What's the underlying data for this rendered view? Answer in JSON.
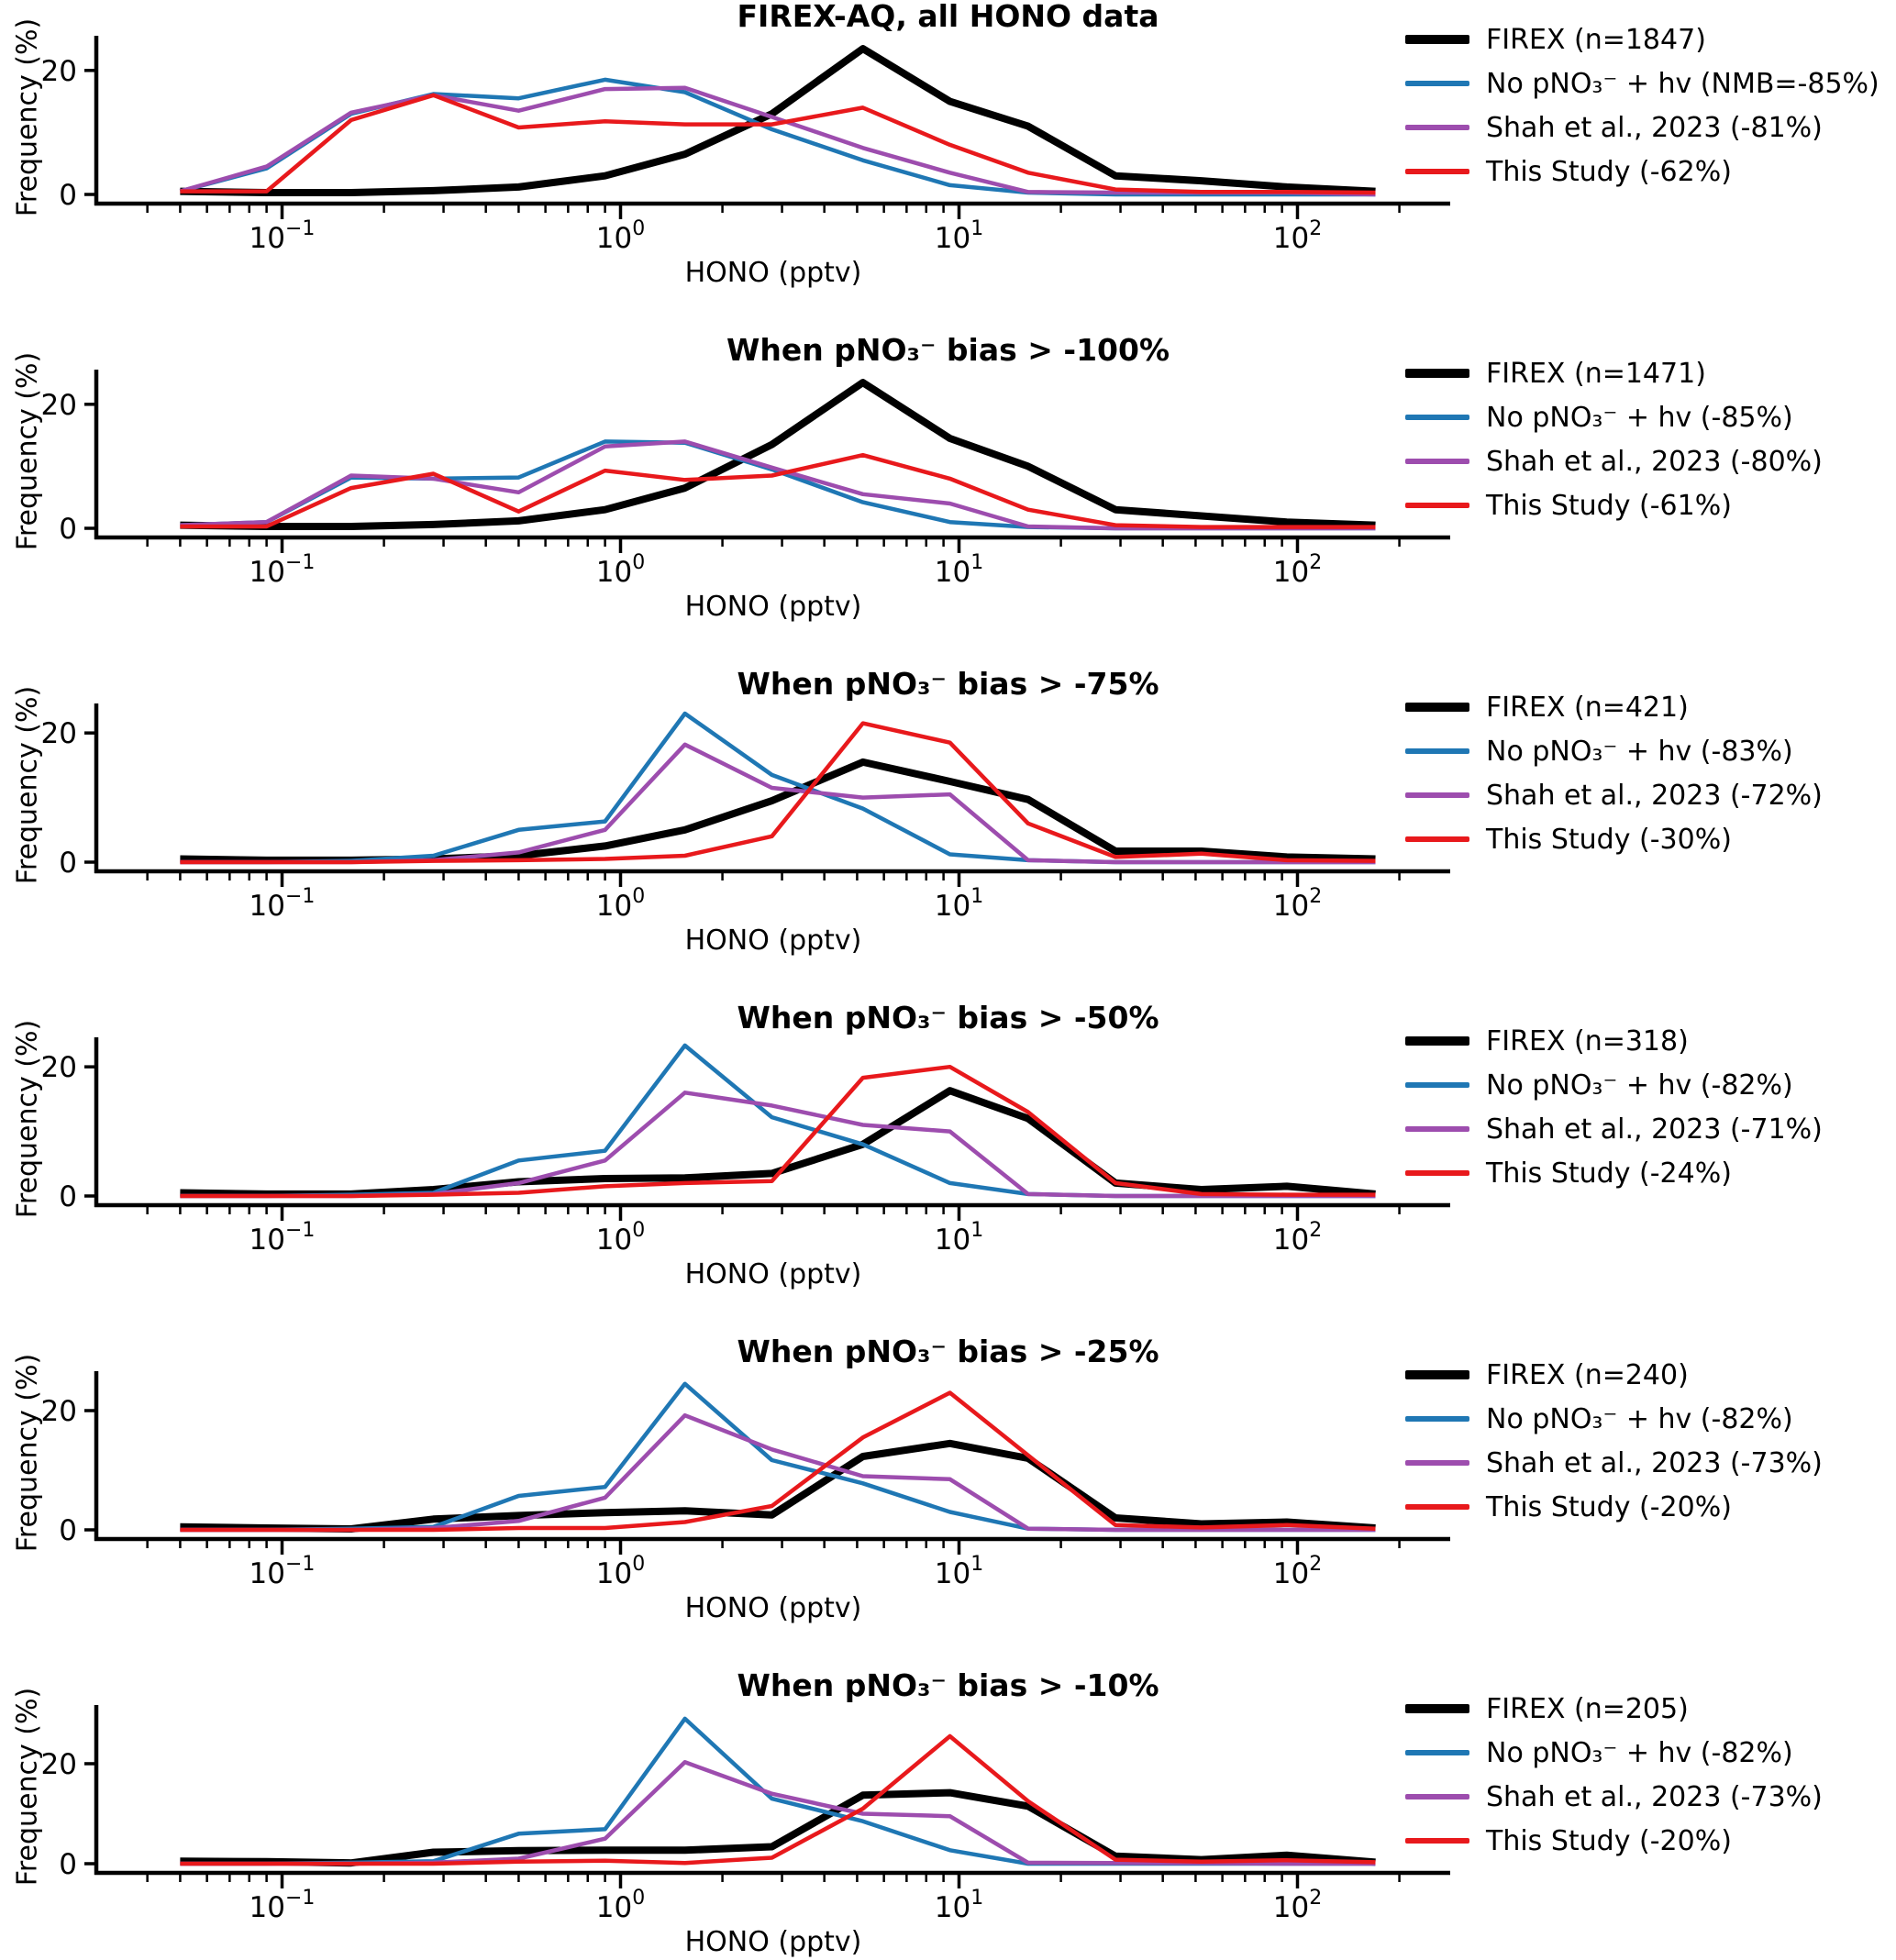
{
  "chart_data": {
    "type": "line",
    "xscale": "log",
    "xlabel": "HONO (pptv)",
    "ylabel": "Frequency (%)",
    "x": [
      0.05,
      0.09,
      0.16,
      0.28,
      0.5,
      0.9,
      1.55,
      2.8,
      5.2,
      9.4,
      16,
      29,
      52,
      93,
      170
    ],
    "xlim": [
      0.028,
      260
    ],
    "xticks": [
      0.1,
      1,
      10,
      100
    ],
    "xticklabels": [
      {
        "base": "10",
        "exp": "−1"
      },
      {
        "base": "10",
        "exp": "0"
      },
      {
        "base": "10",
        "exp": "1"
      },
      {
        "base": "10",
        "exp": "2"
      }
    ],
    "yticks": [
      0,
      20
    ],
    "yticklabels": [
      "0",
      "20"
    ],
    "legend_position": "right",
    "grid": false,
    "panels": [
      {
        "title": "FIREX-AQ, all HONO data",
        "ylim": [
          0,
          25
        ],
        "series": [
          {
            "name": "firex",
            "label": "FIREX (n=1847)",
            "color": "#000000",
            "lw": 8,
            "values": [
              0.5,
              0.3,
              0.3,
              0.6,
              1.2,
              3.0,
              6.5,
              13.0,
              23.5,
              15.0,
              11.0,
              3.0,
              2.2,
              1.2,
              0.5
            ]
          },
          {
            "name": "no-pno3-hv",
            "label": "No pNO₃⁻ + hv (NMB=-85%)",
            "color": "#1f77b4",
            "lw": 4.5,
            "values": [
              0.5,
              4.2,
              13.0,
              16.2,
              15.5,
              18.5,
              16.5,
              10.5,
              5.5,
              1.5,
              0.3,
              0,
              0,
              0,
              0
            ]
          },
          {
            "name": "shah-2023",
            "label": "Shah et al., 2023 (-81%)",
            "color": "#9d4dae",
            "lw": 4.5,
            "values": [
              0.5,
              4.5,
              13.2,
              16.0,
              13.5,
              17.0,
              17.2,
              12.5,
              7.5,
              3.5,
              0.4,
              0.3,
              0.3,
              0.3,
              0
            ]
          },
          {
            "name": "this-study",
            "label": "This Study (-62%)",
            "color": "#e8191c",
            "lw": 4.5,
            "values": [
              0.5,
              0.5,
              12.0,
              16.0,
              10.8,
              11.8,
              11.3,
              11.3,
              14.0,
              8.0,
              3.5,
              0.8,
              0.4,
              0.4,
              0.3
            ]
          }
        ]
      },
      {
        "title": "When pNO₃⁻ bias > -100%",
        "ylim": [
          0,
          25
        ],
        "series": [
          {
            "name": "firex",
            "label": "FIREX (n=1471)",
            "color": "#000000",
            "lw": 8,
            "values": [
              0.5,
              0.3,
              0.3,
              0.6,
              1.2,
              3.0,
              6.5,
              13.5,
              23.5,
              14.5,
              10.0,
              3.0,
              2.0,
              1.0,
              0.5
            ]
          },
          {
            "name": "no-pno3-hv",
            "label": "No pNO₃⁻ + hv (-85%)",
            "color": "#1f77b4",
            "lw": 4.5,
            "values": [
              0.5,
              1.0,
              8.2,
              8.0,
              8.2,
              14.0,
              13.8,
              9.5,
              4.2,
              1.0,
              0.2,
              0,
              0,
              0,
              0
            ]
          },
          {
            "name": "shah-2023",
            "label": "Shah et al., 2023 (-80%)",
            "color": "#9d4dae",
            "lw": 4.5,
            "values": [
              0.5,
              1.0,
              8.5,
              8.0,
              5.8,
              13.2,
              14.0,
              9.8,
              5.5,
              4.0,
              0.3,
              0,
              0,
              0,
              0
            ]
          },
          {
            "name": "this-study",
            "label": "This Study (-61%)",
            "color": "#e8191c",
            "lw": 4.5,
            "values": [
              0.3,
              0.3,
              6.5,
              8.8,
              2.7,
              9.3,
              7.8,
              8.5,
              11.8,
              8.0,
              3.0,
              0.5,
              0.2,
              0.2,
              0.2
            ]
          }
        ]
      },
      {
        "title": "When pNO₃⁻ bias > -75%",
        "ylim": [
          0,
          24
        ],
        "series": [
          {
            "name": "firex",
            "label": "FIREX (n=421)",
            "color": "#000000",
            "lw": 8,
            "values": [
              0.5,
              0.3,
              0.3,
              0.5,
              1.0,
              2.5,
              5.0,
              9.5,
              15.5,
              12.5,
              9.7,
              1.7,
              1.7,
              0.8,
              0.5
            ]
          },
          {
            "name": "no-pno3-hv",
            "label": "No pNO₃⁻ + hv (-83%)",
            "color": "#1f77b4",
            "lw": 4.5,
            "values": [
              0,
              0,
              0.2,
              1.0,
              5.0,
              6.3,
              23.0,
              13.5,
              8.3,
              1.2,
              0.3,
              0,
              0,
              0,
              0
            ]
          },
          {
            "name": "shah-2023",
            "label": "Shah et al., 2023 (-72%)",
            "color": "#9d4dae",
            "lw": 4.5,
            "values": [
              0,
              0,
              0,
              0.3,
              1.5,
              5.0,
              18.2,
              11.5,
              10.0,
              10.5,
              0.3,
              0,
              0,
              0,
              0
            ]
          },
          {
            "name": "this-study",
            "label": "This Study (-30%)",
            "color": "#e8191c",
            "lw": 4.5,
            "values": [
              0,
              0,
              0,
              0.2,
              0.3,
              0.5,
              1.0,
              4.0,
              21.5,
              18.5,
              6.0,
              0.8,
              1.3,
              0.3,
              0.2
            ]
          }
        ]
      },
      {
        "title": "When pNO₃⁻ bias > -50%",
        "ylim": [
          0,
          24
        ],
        "series": [
          {
            "name": "firex",
            "label": "FIREX (n=318)",
            "color": "#000000",
            "lw": 8,
            "values": [
              0.5,
              0.3,
              0.3,
              1.0,
              2.2,
              2.7,
              2.8,
              3.5,
              8.0,
              16.3,
              12.0,
              2.0,
              1.0,
              1.5,
              0.3
            ]
          },
          {
            "name": "no-pno3-hv",
            "label": "No pNO₃⁻ + hv (-82%)",
            "color": "#1f77b4",
            "lw": 4.5,
            "values": [
              0,
              0,
              0.2,
              0.5,
              5.5,
              7.0,
              23.3,
              12.2,
              8.0,
              2.0,
              0.3,
              0,
              0,
              0,
              0
            ]
          },
          {
            "name": "shah-2023",
            "label": "Shah et al., 2023 (-71%)",
            "color": "#9d4dae",
            "lw": 4.5,
            "values": [
              0,
              0,
              0,
              0.3,
              2.0,
              5.5,
              16.0,
              14.0,
              11.0,
              10.0,
              0.3,
              0,
              0,
              0,
              0
            ]
          },
          {
            "name": "this-study",
            "label": "This Study (-24%)",
            "color": "#e8191c",
            "lw": 4.5,
            "values": [
              0,
              0,
              0,
              0.2,
              0.5,
              1.5,
              2.0,
              2.3,
              18.3,
              20.0,
              13.0,
              2.0,
              0.3,
              0.2,
              0.2
            ]
          }
        ]
      },
      {
        "title": "When pNO₃⁻ bias > -25%",
        "ylim": [
          0,
          26
        ],
        "series": [
          {
            "name": "firex",
            "label": "FIREX (n=240)",
            "color": "#000000",
            "lw": 8,
            "values": [
              0.5,
              0.3,
              0.15,
              1.8,
              2.4,
              2.9,
              3.2,
              2.5,
              12.3,
              14.5,
              12.0,
              2.0,
              1.0,
              1.3,
              0.3
            ]
          },
          {
            "name": "no-pno3-hv",
            "label": "No pNO₃⁻ + hv (-82%)",
            "color": "#1f77b4",
            "lw": 4.5,
            "values": [
              0,
              0,
              0.2,
              0.5,
              5.7,
              7.2,
              24.5,
              11.7,
              7.8,
              3.0,
              0.2,
              0,
              0,
              0,
              0
            ]
          },
          {
            "name": "shah-2023",
            "label": "Shah et al., 2023 (-73%)",
            "color": "#9d4dae",
            "lw": 4.5,
            "values": [
              0,
              0,
              0,
              0.3,
              1.5,
              5.4,
              19.2,
              13.5,
              9.0,
              8.5,
              0.2,
              0,
              0,
              0,
              0
            ]
          },
          {
            "name": "this-study",
            "label": "This Study (-20%)",
            "color": "#e8191c",
            "lw": 4.5,
            "values": [
              0,
              0,
              0,
              0,
              0.3,
              0.3,
              1.3,
              4.0,
              15.5,
              23.0,
              12.5,
              0.8,
              0.4,
              0.8,
              0.2
            ]
          }
        ]
      },
      {
        "title": "When pNO₃⁻ bias > -10%",
        "ylim": [
          0,
          31
        ],
        "series": [
          {
            "name": "firex",
            "label": "FIREX (n=205)",
            "color": "#000000",
            "lw": 8,
            "values": [
              0.5,
              0.4,
              0.15,
              2.3,
              2.6,
              2.7,
              2.7,
              3.4,
              13.7,
              14.2,
              11.5,
              1.5,
              0.8,
              1.7,
              0.3
            ]
          },
          {
            "name": "no-pno3-hv",
            "label": "No pNO₃⁻ + hv (-82%)",
            "color": "#1f77b4",
            "lw": 4.5,
            "values": [
              0,
              0,
              0.2,
              0.5,
              6.0,
              6.9,
              29.0,
              13.0,
              8.5,
              2.7,
              0,
              0,
              0,
              0,
              0
            ]
          },
          {
            "name": "shah-2023",
            "label": "Shah et al., 2023 (-73%)",
            "color": "#9d4dae",
            "lw": 4.5,
            "values": [
              0,
              0,
              0,
              0.2,
              1.0,
              5.0,
              20.3,
              14.0,
              10.0,
              9.5,
              0.2,
              0.15,
              0.15,
              0,
              0
            ]
          },
          {
            "name": "this-study",
            "label": "This Study (-20%)",
            "color": "#e8191c",
            "lw": 4.5,
            "values": [
              0,
              0,
              0,
              0,
              0.4,
              0.6,
              0.15,
              1.2,
              11.0,
              25.5,
              12.5,
              0.8,
              0.4,
              0.7,
              0.3
            ]
          }
        ]
      }
    ]
  }
}
